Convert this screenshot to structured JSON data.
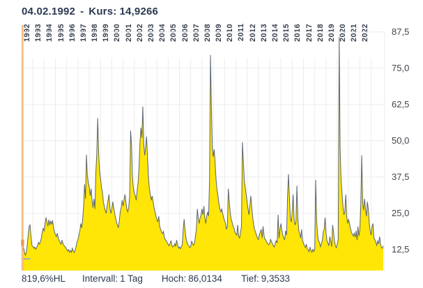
{
  "header": {
    "date": "04.02.1992",
    "separator": "-",
    "kurs_label": "Kurs:",
    "kurs_value": "14,9266"
  },
  "status_bar": {
    "hl_percent": "819,6%HL",
    "interval_label": "Intervall:",
    "interval_value": "1 Tag",
    "hoch_label": "Hoch:",
    "hoch_value": "86,0134",
    "tief_label": "Tief:",
    "tief_value": "9,3533"
  },
  "colors": {
    "area_fill": "#ffe606",
    "line_stroke": "#5b6570",
    "grid": "#ececec",
    "crosshair_orange": "#f3ba7c",
    "crosshair_dot": "#ee9c4d",
    "low_dash": "#a9adb4",
    "text_dark": "#2b3a52",
    "axis_text": "#39424f"
  },
  "chart_data": {
    "type": "area",
    "title": "04.02.1992 - Kurs: 14,9266",
    "xlabel": "",
    "ylabel": "",
    "grid": true,
    "legend": false,
    "x_domain": [
      1992.0,
      2024.2
    ],
    "ylim": [
      5.3,
      90.6
    ],
    "x_tick_years": [
      "1992",
      "1993",
      "1994",
      "1995",
      "1996",
      "1997",
      "1998",
      "1999",
      "2000",
      "2001",
      "2002",
      "2003",
      "2004",
      "2005",
      "2006",
      "2007",
      "2008",
      "2009",
      "2010",
      "2011",
      "2012",
      "2013",
      "2014",
      "2015",
      "2016",
      "2017",
      "2018",
      "2019",
      "2020",
      "2021",
      "2022"
    ],
    "y_ticks": [
      {
        "label": "87,5",
        "value": 87.5
      },
      {
        "label": "75,0",
        "value": 75.0
      },
      {
        "label": "62,5",
        "value": 62.5
      },
      {
        "label": "50,0",
        "value": 50.0
      },
      {
        "label": "37,5",
        "value": 37.5
      },
      {
        "label": "25,0",
        "value": 25.0
      },
      {
        "label": "12,5",
        "value": 12.5
      }
    ],
    "markers": {
      "crosshair_date": "04.02.1992",
      "crosshair_value": 14.9266,
      "low_dash_value": 9.35,
      "high": 86.0134,
      "low": 9.3533
    },
    "series": [
      {
        "name": "Kurs",
        "start_year": 1992,
        "start_month": 2,
        "interval": "monthly",
        "values": [
          14.9,
          13.2,
          11.8,
          10.6,
          11.5,
          14.0,
          17.5,
          20.5,
          21.0,
          17.0,
          14.0,
          13.6,
          13.0,
          13.4,
          12.6,
          13.2,
          14.0,
          15.0,
          14.4,
          15.2,
          16.5,
          18.5,
          19.8,
          19.0,
          21.5,
          23.6,
          22.0,
          20.5,
          22.8,
          21.0,
          22.4,
          21.2,
          22.6,
          20.0,
          18.6,
          17.6,
          17.0,
          18.2,
          16.4,
          15.6,
          15.0,
          14.4,
          15.8,
          14.6,
          14.0,
          13.6,
          13.2,
          12.6,
          12.0,
          12.5,
          11.6,
          12.2,
          11.6,
          13.0,
          12.0,
          11.5,
          12.4,
          13.6,
          15.2,
          16.0,
          17.5,
          19.0,
          21.5,
          20.0,
          23.0,
          27.5,
          35.0,
          30.0,
          45.2,
          38.0,
          35.5,
          34.0,
          31.0,
          33.5,
          29.5,
          27.0,
          30.0,
          26.5,
          39.0,
          45.5,
          57.8,
          46.0,
          39.5,
          37.0,
          34.0,
          32.5,
          29.0,
          27.5,
          26.0,
          25.0,
          27.5,
          29.5,
          31.5,
          27.0,
          25.0,
          26.5,
          29.0,
          27.0,
          25.0,
          23.5,
          22.0,
          21.0,
          20.0,
          22.5,
          25.5,
          27.0,
          29.5,
          27.5,
          29.5,
          31.5,
          29.0,
          26.5,
          25.5,
          27.0,
          31.0,
          53.5,
          48.5,
          37.5,
          33.5,
          32.0,
          31.0,
          29.5,
          33.0,
          35.5,
          41.0,
          49.5,
          54.5,
          51.0,
          61.8,
          49.0,
          45.0,
          47.5,
          51.5,
          44.5,
          37.5,
          33.5,
          31.5,
          29.5,
          31.0,
          29.0,
          27.0,
          25.5,
          24.0,
          23.0,
          22.0,
          24.0,
          20.5,
          19.5,
          18.5,
          18.0,
          18.8,
          16.5,
          16.0,
          15.5,
          14.8,
          14.4,
          13.8,
          14.6,
          15.6,
          13.9,
          13.4,
          13.8,
          14.6,
          13.6,
          15.8,
          14.2,
          13.0,
          13.4,
          12.8,
          13.6,
          14.2,
          19.5,
          23.0,
          19.0,
          16.5,
          15.0,
          14.2,
          13.8,
          13.2,
          13.6,
          15.5,
          14.5,
          14.0,
          15.0,
          17.0,
          19.5,
          26.5,
          23.5,
          21.5,
          23.5,
          24.5,
          26.5,
          24.5,
          27.5,
          23.5,
          21.5,
          24.0,
          25.5,
          24.0,
          36.0,
          79.5,
          62.0,
          47.5,
          44.5,
          47.0,
          42.0,
          36.5,
          33.0,
          31.0,
          28.5,
          26.5,
          25.5,
          26.5,
          25.0,
          23.5,
          22.5,
          21.5,
          19.5,
          20.5,
          33.5,
          29.0,
          25.5,
          23.0,
          22.0,
          20.5,
          20.0,
          18.5,
          18.0,
          17.5,
          21.0,
          17.0,
          16.5,
          18.5,
          20.5,
          49.5,
          43.0,
          36.5,
          34.0,
          31.5,
          29.0,
          26.5,
          24.5,
          28.0,
          31.0,
          27.0,
          23.5,
          21.0,
          19.5,
          18.5,
          17.5,
          16.5,
          16.0,
          17.5,
          18.5,
          19.5,
          16.5,
          20.5,
          17.5,
          16.0,
          15.8,
          15.0,
          14.6,
          14.2,
          14.6,
          16.0,
          15.2,
          14.5,
          13.8,
          13.4,
          14.8,
          15.6,
          14.8,
          24.5,
          16.5,
          19.5,
          21.5,
          19.0,
          17.5,
          16.5,
          16.0,
          19.0,
          17.5,
          30.5,
          38.5,
          31.0,
          23.5,
          22.0,
          25.5,
          31.5,
          23.0,
          21.0,
          22.0,
          34.5,
          23.5,
          19.0,
          18.0,
          16.5,
          19.5,
          15.5,
          14.8,
          13.8,
          13.2,
          14.4,
          12.8,
          12.4,
          11.8,
          13.4,
          12.2,
          11.6,
          12.6,
          11.9,
          12.8,
          36.5,
          22.5,
          17.5,
          15.5,
          15.0,
          13.5,
          14.5,
          15.5,
          18.5,
          19.5,
          23.5,
          18.5,
          15.5,
          14.8,
          13.8,
          17.0,
          15.5,
          13.5,
          21.0,
          18.5,
          15.5,
          13.8,
          13.2,
          14.5,
          16.0,
          85.8,
          47.5,
          36.5,
          32.0,
          27.5,
          24.5,
          25.5,
          31.5,
          24.0,
          21.5,
          23.0,
          21.5,
          19.8,
          18.5,
          17.8,
          17.2,
          18.2,
          16.8,
          19.0,
          15.8,
          20.5,
          17.2,
          19.5,
          28.0,
          45.0,
          28.5,
          26.0,
          30.0,
          26.5,
          24.0,
          29.0,
          26.5,
          21.5,
          19.0,
          17.5,
          20.5,
          21.5,
          16.5,
          16.0,
          15.0,
          14.0,
          15.5,
          14.5,
          17.0,
          14.5,
          13.2,
          13.0,
          13.8
        ]
      }
    ]
  }
}
